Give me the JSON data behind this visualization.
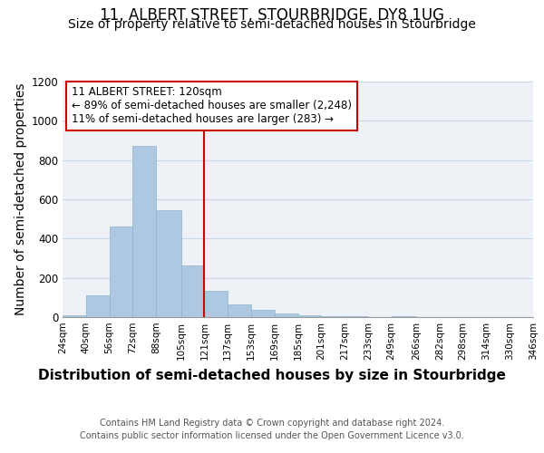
{
  "title": "11, ALBERT STREET, STOURBRIDGE, DY8 1UG",
  "subtitle": "Size of property relative to semi-detached houses in Stourbridge",
  "xlabel": "Distribution of semi-detached houses by size in Stourbridge",
  "ylabel": "Number of semi-detached properties",
  "footnote1": "Contains HM Land Registry data © Crown copyright and database right 2024.",
  "footnote2": "Contains public sector information licensed under the Open Government Licence v3.0.",
  "annotation_line1": "11 ALBERT STREET: 120sqm",
  "annotation_line2": "← 89% of semi-detached houses are smaller (2,248)",
  "annotation_line3": "11% of semi-detached houses are larger (283) →",
  "bar_left_edges": [
    24,
    40,
    56,
    72,
    88,
    105,
    121,
    137,
    153,
    169,
    185,
    201,
    217,
    233,
    249,
    266,
    282,
    298,
    314,
    330
  ],
  "bar_widths": [
    16,
    16,
    16,
    16,
    17,
    16,
    16,
    16,
    16,
    16,
    16,
    16,
    16,
    16,
    17,
    16,
    16,
    16,
    16,
    16
  ],
  "bar_heights": [
    10,
    110,
    460,
    870,
    545,
    265,
    135,
    65,
    35,
    20,
    10,
    5,
    5,
    0,
    5,
    0,
    0,
    0,
    0,
    0
  ],
  "tick_labels": [
    "24sqm",
    "40sqm",
    "56sqm",
    "72sqm",
    "88sqm",
    "105sqm",
    "121sqm",
    "137sqm",
    "153sqm",
    "169sqm",
    "185sqm",
    "201sqm",
    "217sqm",
    "233sqm",
    "249sqm",
    "266sqm",
    "282sqm",
    "298sqm",
    "314sqm",
    "330sqm",
    "346sqm"
  ],
  "ylim": [
    0,
    1200
  ],
  "yticks": [
    0,
    200,
    400,
    600,
    800,
    1000,
    1200
  ],
  "bar_color": "#adc8e0",
  "bar_edge_color": "#8ab4cc",
  "vline_color": "#cc0000",
  "vline_x": 121,
  "grid_color": "#c8d8e8",
  "background_color": "#eef2f7",
  "title_fontsize": 12,
  "subtitle_fontsize": 10,
  "axis_label_fontsize": 10,
  "tick_fontsize": 7.5,
  "annotation_fontsize": 8.5,
  "footnote_fontsize": 7
}
